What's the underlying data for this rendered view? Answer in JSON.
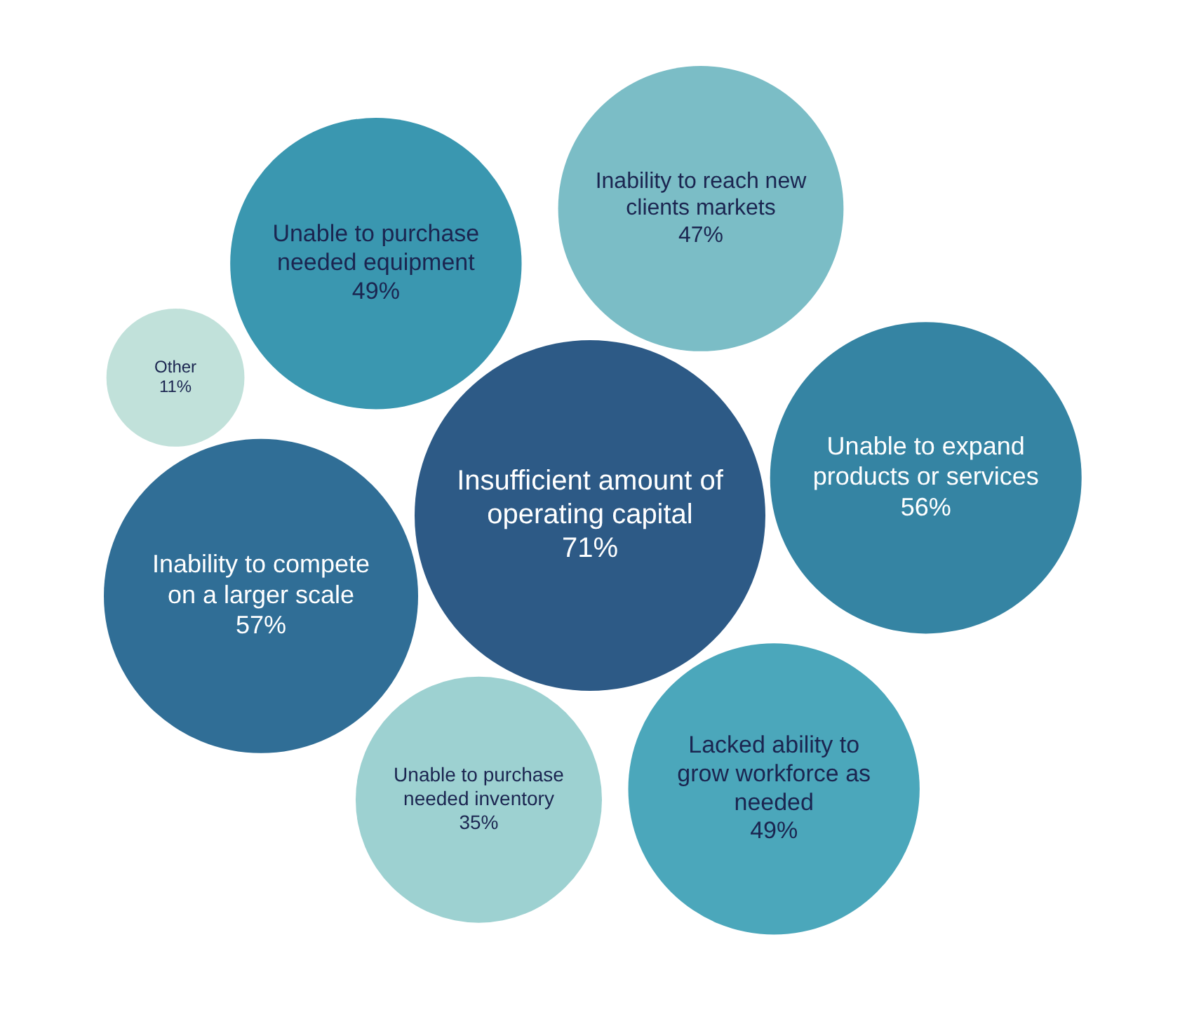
{
  "chart_data": {
    "type": "other",
    "categories": [
      "Insufficient amount of operating capital",
      "Inability to compete on a larger scale",
      "Unable to expand products or services",
      "Unable to purchase needed equipment",
      "Lacked ability to grow workforce as needed",
      "Inability to reach new clients markets",
      "Unable to purchase needed inventory",
      "Other"
    ],
    "values": [
      71,
      57,
      56,
      49,
      49,
      47,
      35,
      11
    ],
    "colors": [
      "#2d5a86",
      "#306e96",
      "#3584a3",
      "#3a97b0",
      "#4ba7bb",
      "#7bbdc6",
      "#9dd1d1",
      "#c1e1da"
    ],
    "value_labels": [
      "71%",
      "57%",
      "56%",
      "49%",
      "49%",
      "47%",
      "35%",
      "11%"
    ]
  }
}
